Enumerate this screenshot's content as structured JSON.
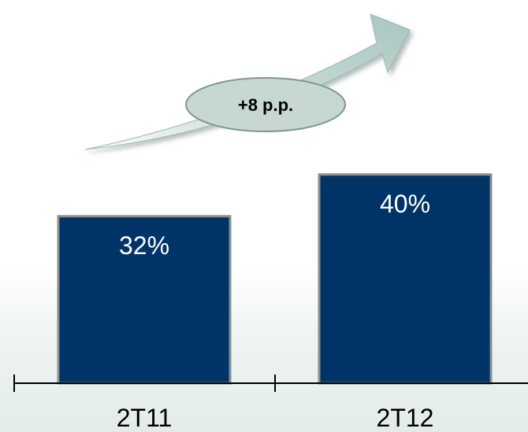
{
  "chart_data": {
    "type": "bar",
    "categories": [
      "2T11",
      "2T12"
    ],
    "values": [
      32,
      40
    ],
    "data_labels": [
      "32%",
      "40%"
    ],
    "ylim": [
      0,
      50
    ],
    "grid": false,
    "annotation": "+8 p.p.",
    "colors": {
      "bar": "#003366",
      "arrow": "#b8d3cd",
      "badge": "#c7d8d2"
    }
  }
}
